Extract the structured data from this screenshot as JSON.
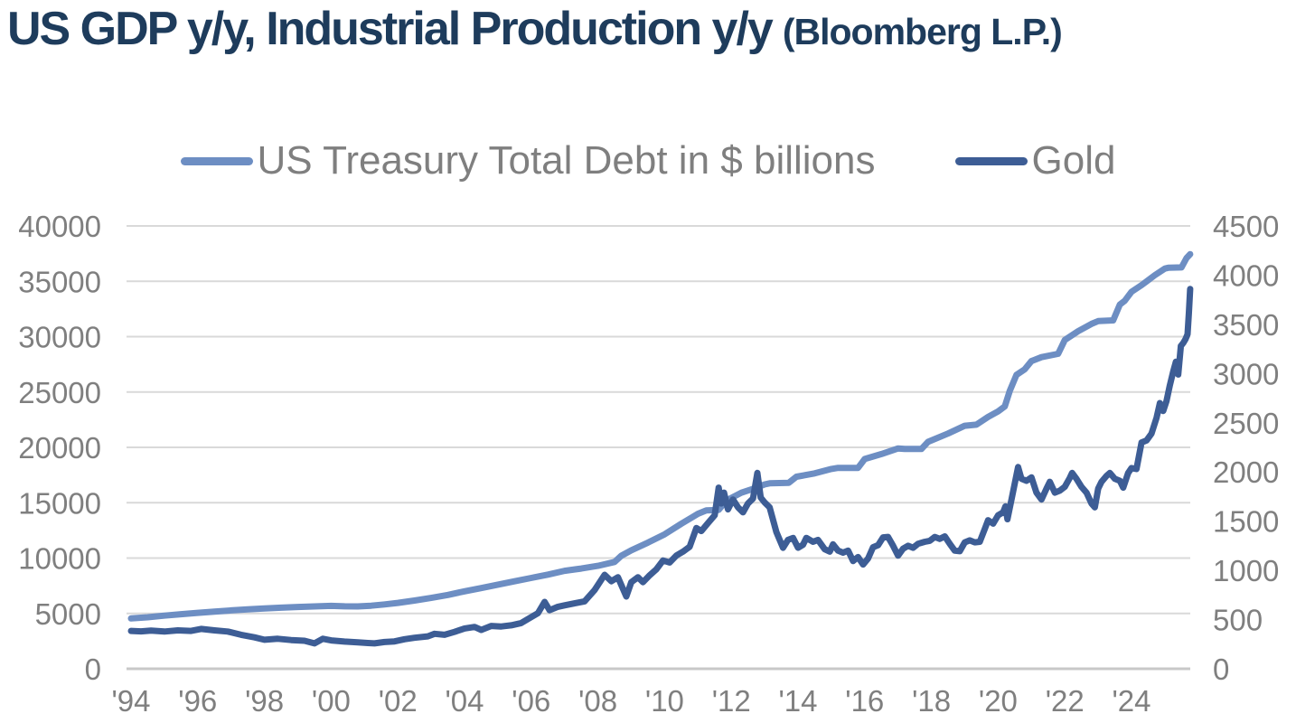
{
  "title": {
    "main": "US GDP y/y, Industrial Production y/y",
    "suffix": "(Bloomberg L.P.)"
  },
  "legend": {
    "items": [
      {
        "label": "US Treasury Total Debt in $ billions",
        "color": "#6d8ec3"
      },
      {
        "label": "Gold",
        "color": "#3d5d95"
      }
    ]
  },
  "colors": {
    "background": "#ffffff",
    "title_text": "#1e3c5c",
    "axis_text": "#7f7f7f",
    "gridline": "#d9d9d9",
    "axis_line": "#c8c8c8",
    "treasury_line": "#6d8ec3",
    "gold_line": "#3d5d95"
  },
  "chart_data": {
    "type": "line",
    "title": "US GDP y/y, Industrial Production y/y (Bloomberg L.P.)",
    "legend_position": "top",
    "grid": "horizontal",
    "x_axis": {
      "start": 1994,
      "end": 2025.76,
      "ticks": [
        1994,
        1996,
        1998,
        2000,
        2002,
        2004,
        2006,
        2008,
        2010,
        2012,
        2014,
        2016,
        2018,
        2020,
        2022,
        2024
      ],
      "tick_labels": [
        "'94",
        "'96",
        "'98",
        "'00",
        "'02",
        "'04",
        "'06",
        "'08",
        "'10",
        "'12",
        "'14",
        "'16",
        "'18",
        "'20",
        "'22",
        "'24"
      ]
    },
    "y_axis_left": {
      "series": "US Treasury Total Debt in $ billions",
      "min": 0,
      "max": 40000,
      "ticks": [
        0,
        5000,
        10000,
        15000,
        20000,
        25000,
        30000,
        35000,
        40000
      ]
    },
    "y_axis_right": {
      "series": "Gold",
      "min": 0,
      "max": 4500,
      "ticks": [
        0,
        500,
        1000,
        1500,
        2000,
        2500,
        3000,
        3500,
        4000,
        4500
      ]
    },
    "series": [
      {
        "id": "treasury",
        "name": "US Treasury Total Debt in $ billions",
        "axis": "left",
        "color": "#6d8ec3",
        "points": [
          [
            1994.0,
            4550
          ],
          [
            1994.5,
            4650
          ],
          [
            1995.0,
            4800
          ],
          [
            1995.5,
            4930
          ],
          [
            1996.0,
            5050
          ],
          [
            1996.5,
            5160
          ],
          [
            1997.0,
            5270
          ],
          [
            1997.5,
            5370
          ],
          [
            1998.0,
            5450
          ],
          [
            1998.5,
            5520
          ],
          [
            1999.0,
            5580
          ],
          [
            1999.5,
            5630
          ],
          [
            2000.0,
            5680
          ],
          [
            2000.4,
            5640
          ],
          [
            2000.8,
            5630
          ],
          [
            2001.2,
            5700
          ],
          [
            2001.6,
            5810
          ],
          [
            2002.0,
            5950
          ],
          [
            2002.5,
            6160
          ],
          [
            2003.0,
            6400
          ],
          [
            2003.5,
            6670
          ],
          [
            2004.0,
            7000
          ],
          [
            2004.5,
            7290
          ],
          [
            2005.0,
            7600
          ],
          [
            2005.5,
            7900
          ],
          [
            2006.0,
            8200
          ],
          [
            2006.5,
            8510
          ],
          [
            2007.0,
            8850
          ],
          [
            2007.5,
            9050
          ],
          [
            2008.0,
            9300
          ],
          [
            2008.5,
            9650
          ],
          [
            2008.7,
            10200
          ],
          [
            2009.0,
            10700
          ],
          [
            2009.5,
            11400
          ],
          [
            2010.0,
            12150
          ],
          [
            2010.5,
            13100
          ],
          [
            2011.0,
            14000
          ],
          [
            2011.25,
            14300
          ],
          [
            2011.62,
            14350
          ],
          [
            2011.85,
            15200
          ],
          [
            2012.3,
            15900
          ],
          [
            2012.7,
            16300
          ],
          [
            2013.0,
            16650
          ],
          [
            2013.15,
            16750
          ],
          [
            2013.72,
            16800
          ],
          [
            2013.95,
            17350
          ],
          [
            2014.5,
            17650
          ],
          [
            2015.0,
            18050
          ],
          [
            2015.2,
            18150
          ],
          [
            2015.8,
            18150
          ],
          [
            2016.0,
            18950
          ],
          [
            2016.5,
            19400
          ],
          [
            2017.0,
            19900
          ],
          [
            2017.2,
            19850
          ],
          [
            2017.7,
            19850
          ],
          [
            2017.9,
            20500
          ],
          [
            2018.5,
            21250
          ],
          [
            2019.0,
            21950
          ],
          [
            2019.35,
            22050
          ],
          [
            2019.7,
            22750
          ],
          [
            2020.0,
            23250
          ],
          [
            2020.2,
            23700
          ],
          [
            2020.35,
            25100
          ],
          [
            2020.55,
            26550
          ],
          [
            2020.8,
            27050
          ],
          [
            2021.0,
            27800
          ],
          [
            2021.3,
            28150
          ],
          [
            2021.8,
            28450
          ],
          [
            2022.0,
            29700
          ],
          [
            2022.4,
            30500
          ],
          [
            2022.8,
            31150
          ],
          [
            2023.0,
            31400
          ],
          [
            2023.45,
            31470
          ],
          [
            2023.65,
            32900
          ],
          [
            2023.8,
            33250
          ],
          [
            2024.0,
            34050
          ],
          [
            2024.3,
            34650
          ],
          [
            2024.7,
            35550
          ],
          [
            2025.0,
            36150
          ],
          [
            2025.1,
            36220
          ],
          [
            2025.5,
            36250
          ],
          [
            2025.65,
            37100
          ],
          [
            2025.76,
            37450
          ]
        ]
      },
      {
        "id": "gold",
        "name": "Gold",
        "axis": "right",
        "color": "#3d5d95",
        "points": [
          [
            1994.0,
            385
          ],
          [
            1994.3,
            380
          ],
          [
            1994.6,
            388
          ],
          [
            1995.0,
            378
          ],
          [
            1995.4,
            390
          ],
          [
            1995.8,
            385
          ],
          [
            1996.1,
            405
          ],
          [
            1996.5,
            390
          ],
          [
            1996.9,
            378
          ],
          [
            1997.3,
            345
          ],
          [
            1997.7,
            320
          ],
          [
            1998.0,
            295
          ],
          [
            1998.4,
            305
          ],
          [
            1998.8,
            292
          ],
          [
            1999.2,
            285
          ],
          [
            1999.5,
            258
          ],
          [
            1999.75,
            305
          ],
          [
            2000.0,
            288
          ],
          [
            2000.4,
            276
          ],
          [
            2000.8,
            268
          ],
          [
            2001.1,
            262
          ],
          [
            2001.3,
            258
          ],
          [
            2001.6,
            272
          ],
          [
            2001.9,
            278
          ],
          [
            2002.2,
            300
          ],
          [
            2002.5,
            315
          ],
          [
            2002.9,
            330
          ],
          [
            2003.1,
            355
          ],
          [
            2003.4,
            345
          ],
          [
            2003.7,
            375
          ],
          [
            2004.0,
            410
          ],
          [
            2004.3,
            425
          ],
          [
            2004.5,
            395
          ],
          [
            2004.8,
            435
          ],
          [
            2005.1,
            430
          ],
          [
            2005.4,
            442
          ],
          [
            2005.7,
            465
          ],
          [
            2005.95,
            515
          ],
          [
            2006.2,
            565
          ],
          [
            2006.4,
            680
          ],
          [
            2006.55,
            595
          ],
          [
            2006.8,
            630
          ],
          [
            2007.0,
            645
          ],
          [
            2007.3,
            665
          ],
          [
            2007.6,
            685
          ],
          [
            2007.9,
            800
          ],
          [
            2008.2,
            955
          ],
          [
            2008.4,
            890
          ],
          [
            2008.6,
            930
          ],
          [
            2008.85,
            735
          ],
          [
            2009.0,
            880
          ],
          [
            2009.2,
            930
          ],
          [
            2009.35,
            880
          ],
          [
            2009.55,
            950
          ],
          [
            2009.75,
            1010
          ],
          [
            2009.95,
            1100
          ],
          [
            2010.15,
            1080
          ],
          [
            2010.35,
            1150
          ],
          [
            2010.55,
            1190
          ],
          [
            2010.75,
            1240
          ],
          [
            2010.95,
            1430
          ],
          [
            2011.1,
            1400
          ],
          [
            2011.3,
            1480
          ],
          [
            2011.5,
            1560
          ],
          [
            2011.62,
            1840
          ],
          [
            2011.7,
            1680
          ],
          [
            2011.78,
            1790
          ],
          [
            2011.9,
            1620
          ],
          [
            2012.05,
            1720
          ],
          [
            2012.2,
            1640
          ],
          [
            2012.35,
            1590
          ],
          [
            2012.5,
            1680
          ],
          [
            2012.65,
            1730
          ],
          [
            2012.78,
            1990
          ],
          [
            2012.88,
            1740
          ],
          [
            2013.0,
            1690
          ],
          [
            2013.15,
            1640
          ],
          [
            2013.35,
            1390
          ],
          [
            2013.55,
            1230
          ],
          [
            2013.7,
            1310
          ],
          [
            2013.85,
            1330
          ],
          [
            2014.0,
            1230
          ],
          [
            2014.15,
            1260
          ],
          [
            2014.25,
            1330
          ],
          [
            2014.45,
            1290
          ],
          [
            2014.6,
            1310
          ],
          [
            2014.8,
            1215
          ],
          [
            2014.95,
            1190
          ],
          [
            2015.05,
            1265
          ],
          [
            2015.2,
            1200
          ],
          [
            2015.35,
            1180
          ],
          [
            2015.5,
            1200
          ],
          [
            2015.65,
            1095
          ],
          [
            2015.8,
            1135
          ],
          [
            2015.95,
            1060
          ],
          [
            2016.1,
            1120
          ],
          [
            2016.25,
            1235
          ],
          [
            2016.4,
            1255
          ],
          [
            2016.55,
            1335
          ],
          [
            2016.7,
            1340
          ],
          [
            2016.85,
            1250
          ],
          [
            2017.0,
            1150
          ],
          [
            2017.15,
            1220
          ],
          [
            2017.3,
            1250
          ],
          [
            2017.45,
            1230
          ],
          [
            2017.6,
            1270
          ],
          [
            2017.8,
            1290
          ],
          [
            2017.95,
            1300
          ],
          [
            2018.1,
            1340
          ],
          [
            2018.25,
            1320
          ],
          [
            2018.4,
            1345
          ],
          [
            2018.55,
            1270
          ],
          [
            2018.7,
            1200
          ],
          [
            2018.85,
            1195
          ],
          [
            2019.0,
            1285
          ],
          [
            2019.15,
            1305
          ],
          [
            2019.3,
            1285
          ],
          [
            2019.45,
            1290
          ],
          [
            2019.6,
            1420
          ],
          [
            2019.7,
            1510
          ],
          [
            2019.85,
            1475
          ],
          [
            2020.0,
            1560
          ],
          [
            2020.15,
            1590
          ],
          [
            2020.22,
            1650
          ],
          [
            2020.28,
            1520
          ],
          [
            2020.4,
            1720
          ],
          [
            2020.6,
            2050
          ],
          [
            2020.7,
            1930
          ],
          [
            2020.85,
            1910
          ],
          [
            2021.0,
            1945
          ],
          [
            2021.15,
            1790
          ],
          [
            2021.3,
            1720
          ],
          [
            2021.45,
            1830
          ],
          [
            2021.55,
            1900
          ],
          [
            2021.7,
            1790
          ],
          [
            2021.85,
            1810
          ],
          [
            2022.0,
            1850
          ],
          [
            2022.15,
            1940
          ],
          [
            2022.22,
            1990
          ],
          [
            2022.35,
            1930
          ],
          [
            2022.5,
            1850
          ],
          [
            2022.65,
            1790
          ],
          [
            2022.8,
            1680
          ],
          [
            2022.9,
            1640
          ],
          [
            2023.0,
            1830
          ],
          [
            2023.1,
            1900
          ],
          [
            2023.25,
            1960
          ],
          [
            2023.35,
            1990
          ],
          [
            2023.5,
            1930
          ],
          [
            2023.65,
            1910
          ],
          [
            2023.75,
            1840
          ],
          [
            2023.9,
            1990
          ],
          [
            2024.0,
            2040
          ],
          [
            2024.15,
            2030
          ],
          [
            2024.3,
            2300
          ],
          [
            2024.45,
            2320
          ],
          [
            2024.6,
            2390
          ],
          [
            2024.75,
            2550
          ],
          [
            2024.85,
            2700
          ],
          [
            2024.95,
            2620
          ],
          [
            2025.05,
            2720
          ],
          [
            2025.15,
            2880
          ],
          [
            2025.25,
            3020
          ],
          [
            2025.33,
            3120
          ],
          [
            2025.4,
            2990
          ],
          [
            2025.48,
            3280
          ],
          [
            2025.55,
            3310
          ],
          [
            2025.62,
            3350
          ],
          [
            2025.68,
            3400
          ],
          [
            2025.72,
            3620
          ],
          [
            2025.76,
            3860
          ]
        ]
      }
    ]
  }
}
